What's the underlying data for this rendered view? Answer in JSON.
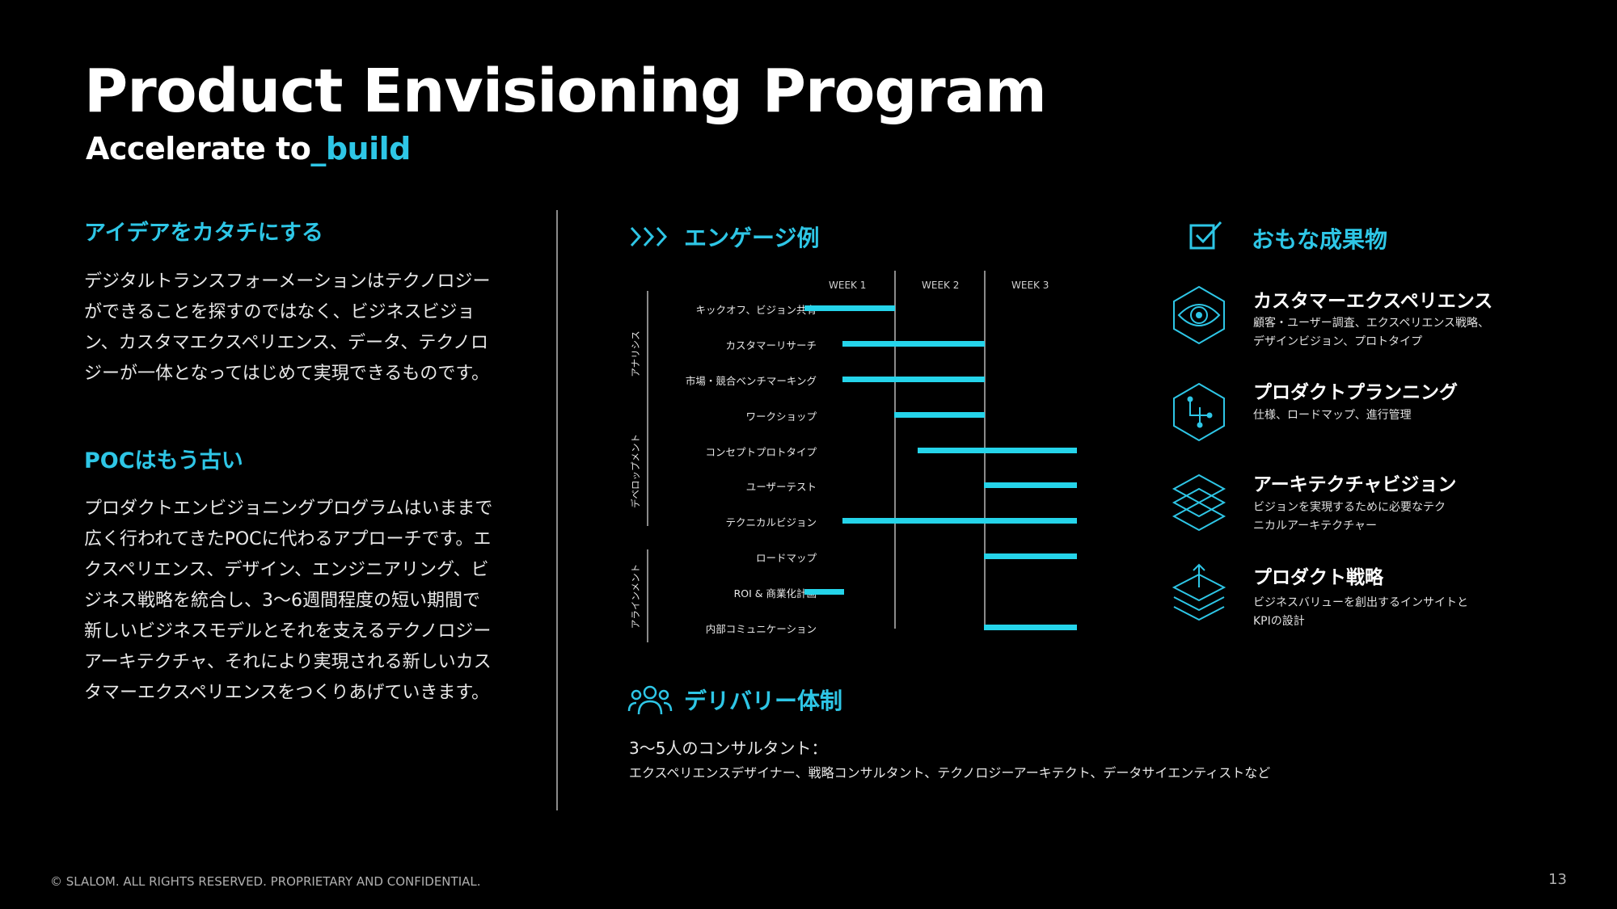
{
  "title": "Product Envisioning Program",
  "subtitle_main": "Accelerate to",
  "subtitle_accent": "_build",
  "left": {
    "section1_head": "アイデアをカタチにする",
    "section1_lines": [
      "デジタルトランスフォーメーションはテクノロジー",
      "ができることを探すのではなく、ビジネスビジョ",
      "ン、カスタマエクスペリエンス、データ、テクノロ",
      "ジーが一体となってはじめて実現できるものです。"
    ],
    "section2_head": "POCはもう古い",
    "section2_lines": [
      "プロダクトエンビジョニングプログラムはいままで",
      "広く行われてきたPOCに代わるアプローチです。エ",
      "クスペリエンス、デザイン、エンジニアリング、ビ",
      "ジネス戦略を統合し、3〜6週間程度の短い期間で",
      "新しいビジネスモデルとそれを支えるテクノロジー",
      "アーキテクチャ、それにより実現される新しいカス",
      "タマーエクスペリエンスをつくりあげていきます。"
    ]
  },
  "engagement": {
    "head": "エンゲージ例",
    "weeks": [
      "WEEK 1",
      "WEEK 2",
      "WEEK 3"
    ],
    "phases": [
      "アナリシス",
      "デベロップメント",
      "アラインメント"
    ],
    "tasks": [
      "キックオフ、ビジョン共有",
      "カスタマーリサーチ",
      "市場・競合ベンチマーキング",
      "ワークショップ",
      "コンセプトプロトタイプ",
      "ユーザーテスト",
      "テクニカルビジョン",
      "ロードマップ",
      "ROI & 商業化計画",
      "内部コミュニケーション"
    ]
  },
  "deliverables": {
    "head": "おもな成果物",
    "items": [
      {
        "title": "カスタマーエクスペリエンス",
        "desc_lines": [
          "顧客・ユーザー調査、エクスペリエンス戦略、",
          "デザインビジョン、プロトタイプ"
        ]
      },
      {
        "title": "プロダクトプランニング",
        "desc_lines": [
          "仕様、ロードマップ、進行管理"
        ]
      },
      {
        "title": "アーキテクチャビジョン",
        "desc_lines": [
          "ビジョンを実現するために必要なテク",
          "ニカルアーキテクチャー"
        ]
      },
      {
        "title": "プロダクト戦略",
        "desc_lines": [
          "ビジネスバリューを創出するインサイトと",
          "KPIの設計"
        ]
      }
    ]
  },
  "delivery": {
    "head": "デリバリー体制",
    "line1": "3〜5人のコンサルタント：",
    "line2": "エクスペリエンスデザイナー、戦略コンサルタント、テクノロジーアーキテクト、データサイエンティストなど"
  },
  "footer": "© SLALOM. ALL RIGHTS RESERVED. PROPRIETARY AND CONFIDENTIAL.",
  "page_number": "13",
  "colors": {
    "accent": "#2ec6e6",
    "bar": "#25d4ea",
    "background": "#000000"
  }
}
